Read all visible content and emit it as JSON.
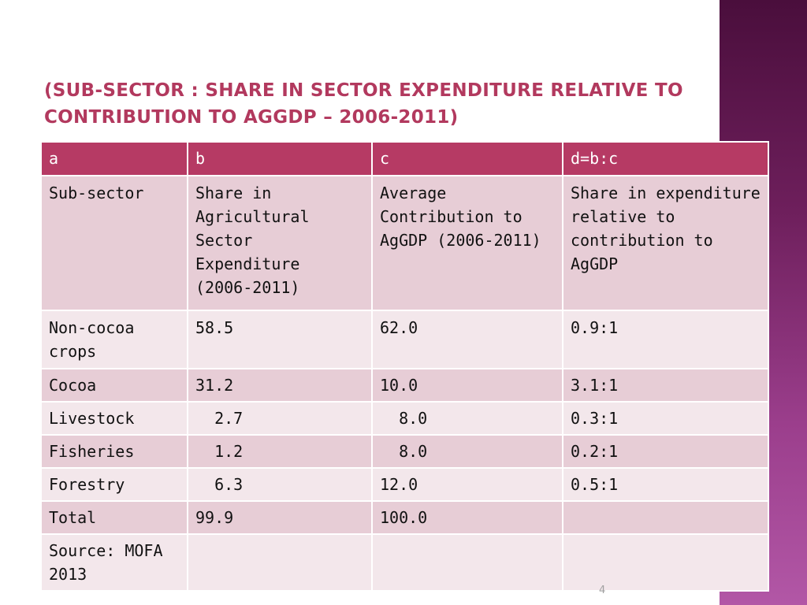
{
  "slide": {
    "title": "(Sub-sector : Share in sector  expenditure relative to contribution  to AgGDP – 2006-2011)",
    "page_number": "4"
  },
  "table": {
    "headers": [
      "a",
      "b",
      "c",
      "d=b:c"
    ],
    "column_descriptions": [
      "Sub-sector",
      "Share in Agricultural Sector Expenditure (2006-2011)",
      "Average Contribution to AgGDP (2006-2011)",
      "Share in expenditure relative to contribution to AgGDP"
    ],
    "rows": [
      [
        "Non-cocoa crops",
        "58.5",
        "62.0",
        "0.9:1"
      ],
      [
        "Cocoa",
        "31.2",
        "10.0",
        "3.1:1"
      ],
      [
        "Livestock",
        "  2.7",
        "  8.0",
        "0.3:1"
      ],
      [
        "Fisheries",
        "  1.2",
        "  8.0",
        "0.2:1"
      ],
      [
        "Forestry",
        "  6.3",
        "12.0",
        "0.5:1"
      ],
      [
        "Total",
        "99.9",
        "100.0",
        ""
      ]
    ],
    "source": "Source: MOFA 2013"
  }
}
